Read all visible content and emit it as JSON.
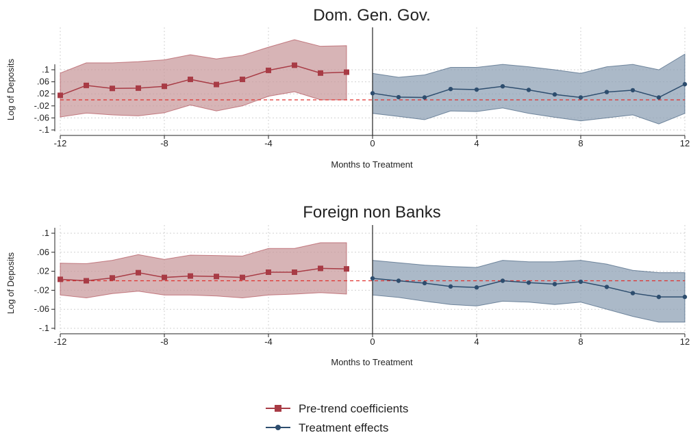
{
  "colors": {
    "pre_line": "#a83b45",
    "pre_fill": "#c99b9e",
    "post_line": "#2d4d6e",
    "post_fill": "#8fa2b6",
    "zero_line": "#e0302e",
    "grid": "#d0d0d0",
    "axis": "#222222"
  },
  "legend": {
    "position": "bottom",
    "items": [
      {
        "label": "Pre-trend coefficients",
        "color": "#a83b45",
        "marker": "square"
      },
      {
        "label": "Treatment effects",
        "color": "#2d4d6e",
        "marker": "circle"
      }
    ]
  },
  "chart_data": [
    {
      "type": "line",
      "title": "Dom. Gen. Gov.",
      "xlabel": "Months to Treatment",
      "ylabel": "Log of Deposits",
      "xlim": [
        -12,
        12
      ],
      "ylim": [
        -0.1,
        0.1
      ],
      "xticks": [
        -12,
        -8,
        -4,
        0,
        4,
        8,
        12
      ],
      "xtick_labels": [
        "-12",
        "-8",
        "-4",
        "0",
        "4",
        "8",
        "12"
      ],
      "yticks": [
        -0.1,
        -0.06,
        -0.02,
        0.02,
        0.06,
        0.1
      ],
      "ytick_labels": [
        "-.1",
        "-.06",
        "-.02",
        ".02",
        ".06",
        ".1"
      ],
      "grid": true,
      "zero_reference_line": 0,
      "treatment_line_x": 0,
      "series": [
        {
          "name": "Pre-trend coefficients",
          "marker": "square",
          "x": [
            -12,
            -11,
            -10,
            -9,
            -8,
            -7,
            -6,
            -5,
            -4,
            -3,
            -2,
            -1
          ],
          "y": [
            0.015,
            0.048,
            0.038,
            0.039,
            0.045,
            0.068,
            0.051,
            0.068,
            0.098,
            0.115,
            0.089,
            0.092
          ],
          "ci_lower": [
            -0.057,
            -0.044,
            -0.05,
            -0.053,
            -0.043,
            -0.017,
            -0.037,
            -0.02,
            0.012,
            0.027,
            0.0,
            0.0
          ],
          "ci_upper": [
            0.089,
            0.123,
            0.123,
            0.127,
            0.133,
            0.15,
            0.136,
            0.148,
            0.175,
            0.2,
            0.178,
            0.18
          ]
        },
        {
          "name": "Treatment effects",
          "marker": "circle",
          "x": [
            0,
            1,
            2,
            3,
            4,
            5,
            6,
            7,
            8,
            9,
            10,
            11,
            12
          ],
          "y": [
            0.022,
            0.009,
            0.008,
            0.036,
            0.034,
            0.045,
            0.033,
            0.018,
            0.008,
            0.026,
            0.032,
            0.008,
            0.052
          ],
          "ci_lower": [
            -0.045,
            -0.055,
            -0.066,
            -0.037,
            -0.039,
            -0.027,
            -0.045,
            -0.058,
            -0.07,
            -0.06,
            -0.05,
            -0.08,
            -0.045
          ],
          "ci_upper": [
            0.088,
            0.075,
            0.083,
            0.108,
            0.108,
            0.118,
            0.11,
            0.1,
            0.088,
            0.11,
            0.118,
            0.1,
            0.152
          ]
        }
      ]
    },
    {
      "type": "line",
      "title": "Foreign non Banks",
      "xlabel": "Months to Treatment",
      "ylabel": "Log of Deposits",
      "xlim": [
        -12,
        12
      ],
      "ylim": [
        -0.1,
        0.1
      ],
      "xticks": [
        -12,
        -8,
        -4,
        0,
        4,
        8,
        12
      ],
      "xtick_labels": [
        "-12",
        "-8",
        "-4",
        "0",
        "4",
        "8",
        "12"
      ],
      "yticks": [
        -0.1,
        -0.06,
        -0.02,
        0.02,
        0.06,
        0.1
      ],
      "ytick_labels": [
        "-.1",
        "-.06",
        "-.02",
        ".02",
        ".06",
        ".1"
      ],
      "grid": true,
      "zero_reference_line": 0,
      "treatment_line_x": 0,
      "series": [
        {
          "name": "Pre-trend coefficients",
          "marker": "square",
          "x": [
            -12,
            -11,
            -10,
            -9,
            -8,
            -7,
            -6,
            -5,
            -4,
            -3,
            -2,
            -1
          ],
          "y": [
            0.003,
            0.0,
            0.006,
            0.017,
            0.007,
            0.01,
            0.009,
            0.007,
            0.018,
            0.018,
            0.026,
            0.025
          ],
          "ci_lower": [
            -0.03,
            -0.036,
            -0.027,
            -0.022,
            -0.03,
            -0.03,
            -0.032,
            -0.036,
            -0.03,
            -0.028,
            -0.025,
            -0.028
          ],
          "ci_upper": [
            0.037,
            0.036,
            0.043,
            0.055,
            0.045,
            0.054,
            0.053,
            0.052,
            0.068,
            0.068,
            0.08,
            0.08
          ]
        },
        {
          "name": "Treatment effects",
          "marker": "circle",
          "x": [
            0,
            1,
            2,
            3,
            4,
            5,
            6,
            7,
            8,
            9,
            10,
            11,
            12
          ],
          "y": [
            0.005,
            0.0,
            -0.005,
            -0.012,
            -0.014,
            0.0,
            -0.004,
            -0.007,
            -0.002,
            -0.013,
            -0.026,
            -0.034,
            -0.034
          ],
          "ci_lower": [
            -0.03,
            -0.035,
            -0.043,
            -0.05,
            -0.053,
            -0.043,
            -0.045,
            -0.05,
            -0.045,
            -0.06,
            -0.075,
            -0.087,
            -0.087
          ],
          "ci_upper": [
            0.043,
            0.038,
            0.033,
            0.03,
            0.028,
            0.043,
            0.04,
            0.04,
            0.043,
            0.035,
            0.022,
            0.017,
            0.017
          ]
        }
      ]
    }
  ]
}
